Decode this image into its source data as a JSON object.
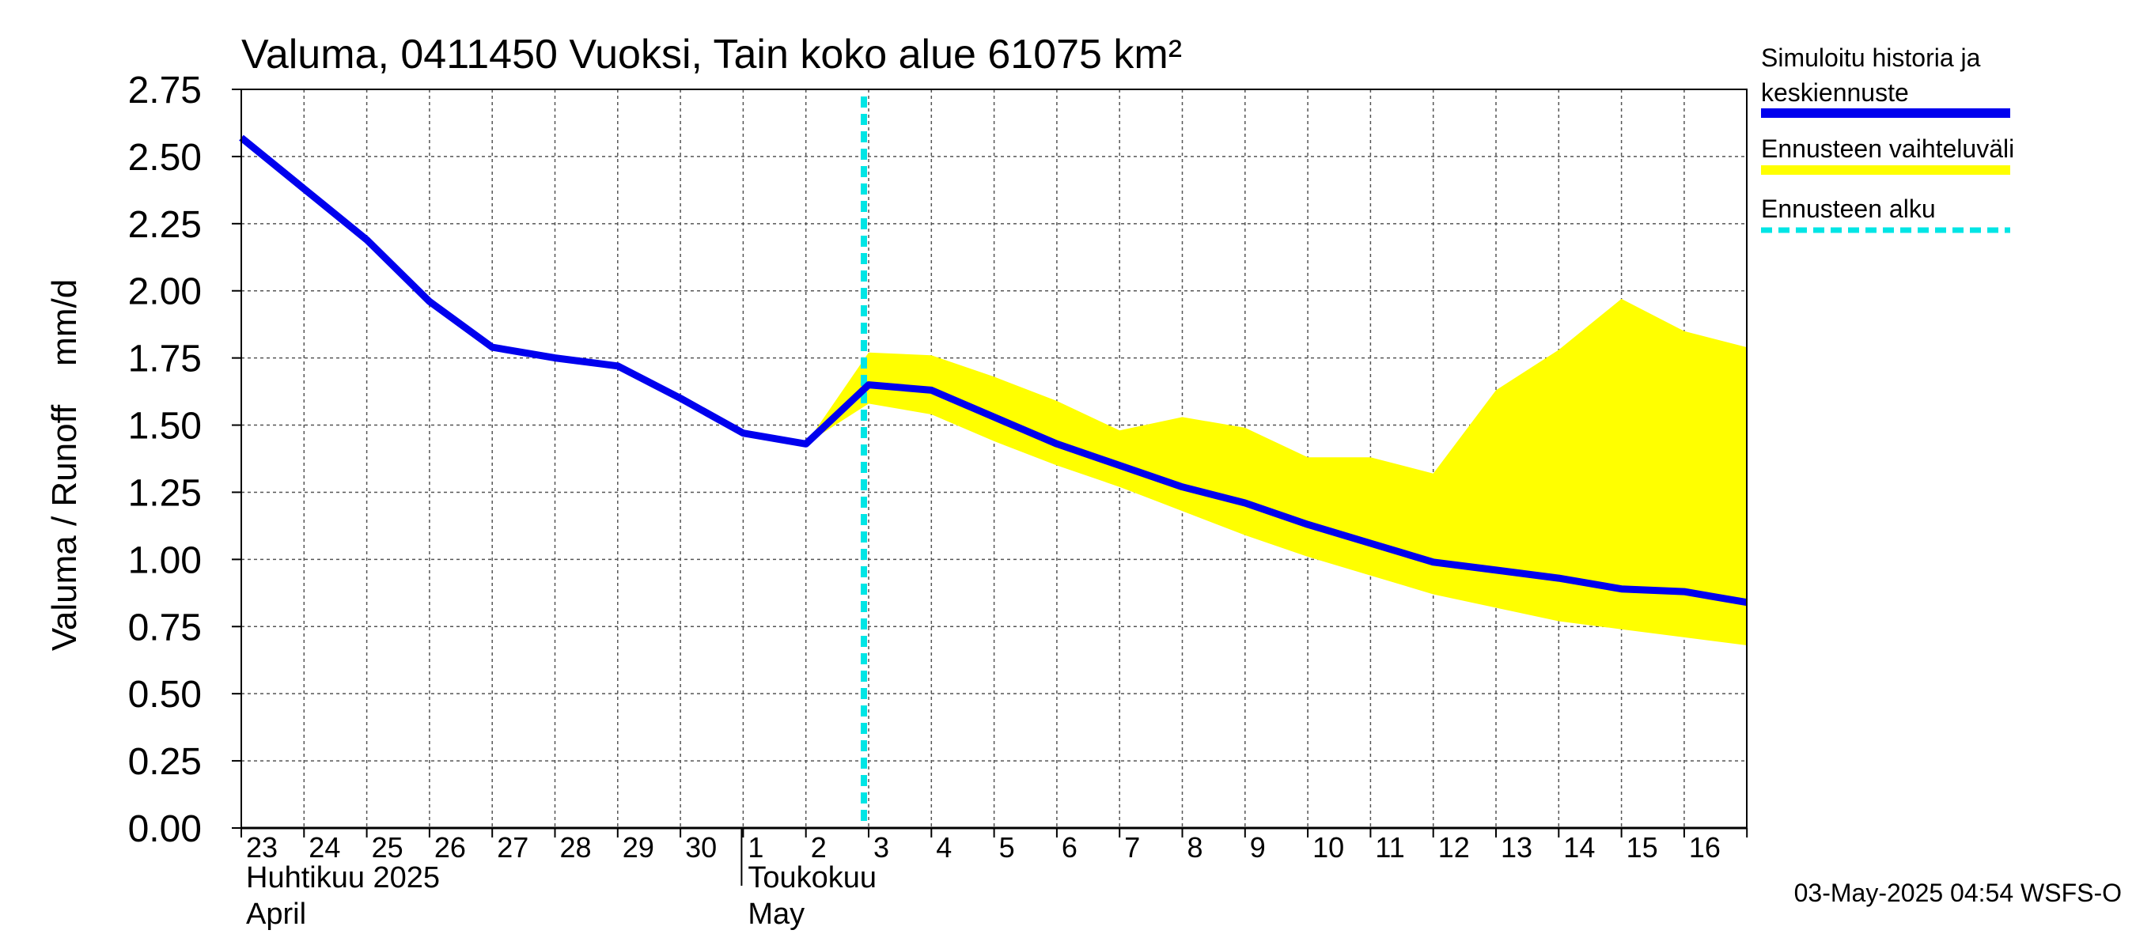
{
  "chart_data": {
    "type": "line",
    "title": "Valuma, 0411450 Vuoksi, Tain koko alue 61075 km²",
    "ylabel": "Valuma / Runoff    mm/d",
    "ylim": [
      0,
      2.75
    ],
    "yticks": [
      "0.00",
      "0.25",
      "0.50",
      "0.75",
      "1.00",
      "1.25",
      "1.50",
      "1.75",
      "2.00",
      "2.25",
      "2.50",
      "2.75"
    ],
    "x_day_labels": [
      "23",
      "24",
      "25",
      "26",
      "27",
      "28",
      "29",
      "30",
      "1",
      "2",
      "3",
      "4",
      "5",
      "6",
      "7",
      "8",
      "9",
      "10",
      "11",
      "12",
      "13",
      "14",
      "15",
      "16"
    ],
    "x_dates": [
      "2025-04-23",
      "2025-04-24",
      "2025-04-25",
      "2025-04-26",
      "2025-04-27",
      "2025-04-28",
      "2025-04-29",
      "2025-04-30",
      "2025-05-01",
      "2025-05-02",
      "2025-05-03",
      "2025-05-04",
      "2025-05-05",
      "2025-05-06",
      "2025-05-07",
      "2025-05-08",
      "2025-05-09",
      "2025-05-10",
      "2025-05-11",
      "2025-05-12",
      "2025-05-13",
      "2025-05-14",
      "2025-05-15",
      "2025-05-16",
      "2025-05-17"
    ],
    "xlim": [
      "2025-04-23",
      "2025-05-17"
    ],
    "months": [
      {
        "name": "Huhtikuu  2025",
        "name_en": "April",
        "start": "2025-04-23"
      },
      {
        "name": "Toukokuu",
        "name_en": "May",
        "start": "2025-05-01"
      }
    ],
    "grid": true,
    "forecast_start": "2025-05-03",
    "series": [
      {
        "name": "Simuloitu historia ja keskiennuste",
        "color": "#0000ee",
        "x": [
          "2025-04-23",
          "2025-04-24",
          "2025-04-25",
          "2025-04-26",
          "2025-04-27",
          "2025-04-28",
          "2025-04-29",
          "2025-04-30",
          "2025-05-01",
          "2025-05-02",
          "2025-05-03",
          "2025-05-04",
          "2025-05-05",
          "2025-05-06",
          "2025-05-07",
          "2025-05-08",
          "2025-05-09",
          "2025-05-10",
          "2025-05-11",
          "2025-05-12",
          "2025-05-13",
          "2025-05-14",
          "2025-05-15",
          "2025-05-16",
          "2025-05-17"
        ],
        "values": [
          2.57,
          2.38,
          2.19,
          1.96,
          1.79,
          1.75,
          1.72,
          1.6,
          1.47,
          1.43,
          1.65,
          1.63,
          1.53,
          1.43,
          1.35,
          1.27,
          1.21,
          1.13,
          1.06,
          0.99,
          0.96,
          0.93,
          0.89,
          0.88,
          0.84
        ]
      }
    ],
    "band": {
      "name": "Ennusteen vaihteluväli",
      "color": "#ffff00",
      "x": [
        "2025-05-02",
        "2025-05-03",
        "2025-05-04",
        "2025-05-05",
        "2025-05-06",
        "2025-05-07",
        "2025-05-08",
        "2025-05-09",
        "2025-05-10",
        "2025-05-11",
        "2025-05-12",
        "2025-05-13",
        "2025-05-14",
        "2025-05-15",
        "2025-05-16",
        "2025-05-17"
      ],
      "upper": [
        1.43,
        1.77,
        1.76,
        1.68,
        1.59,
        1.48,
        1.53,
        1.49,
        1.38,
        1.38,
        1.32,
        1.63,
        1.78,
        1.97,
        1.85,
        1.79
      ],
      "lower": [
        1.43,
        1.58,
        1.54,
        1.44,
        1.35,
        1.27,
        1.18,
        1.09,
        1.01,
        0.94,
        0.87,
        0.82,
        0.77,
        0.74,
        0.71,
        0.68
      ]
    },
    "legend": {
      "placement": "right",
      "entries": [
        {
          "label_lines": [
            "Simuloitu historia ja",
            "keskiennuste"
          ],
          "color": "#0000ee",
          "style": "solid"
        },
        {
          "label_lines": [
            "Ennusteen vaihteluväli"
          ],
          "color": "#ffff00",
          "style": "solid"
        },
        {
          "label_lines": [
            "Ennusteen alku"
          ],
          "color": "#00e5e5",
          "style": "dashed"
        }
      ]
    },
    "footer": "03-May-2025 04:54 WSFS-O"
  }
}
